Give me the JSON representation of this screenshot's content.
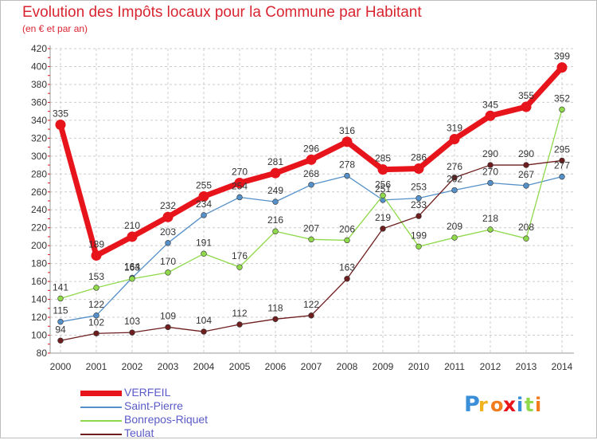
{
  "header": {
    "title": "Evolution des Impôts locaux pour la Commune par Habitant",
    "subtitle": "(en € et par an)"
  },
  "brand": {
    "logo_text": "Proxiti"
  },
  "colors": {
    "title": "#d92531",
    "legend_text": "#5a5ac8",
    "grid": "#cccccc",
    "axis_red_tick": "#e0161e"
  },
  "chart_data": {
    "type": "line",
    "title": "Evolution des Impôts locaux pour la Commune par Habitant",
    "subtitle": "(en € et par an)",
    "xlabel": "",
    "ylabel": "",
    "categories": [
      "2000",
      "2001",
      "2002",
      "2003",
      "2004",
      "2005",
      "2006",
      "2007",
      "2008",
      "2009",
      "2010",
      "2011",
      "2012",
      "2013",
      "2014"
    ],
    "ylim": [
      80,
      420
    ],
    "yticks": [
      80,
      100,
      120,
      140,
      160,
      180,
      200,
      220,
      240,
      260,
      280,
      300,
      320,
      340,
      360,
      380,
      400,
      420
    ],
    "grid": "horizontal",
    "legend_position": "bottom-left",
    "series": [
      {
        "name": "VERFEIL",
        "color": "#e8141c",
        "width": 7,
        "values": [
          335,
          189,
          210,
          232,
          255,
          270,
          281,
          296,
          316,
          285,
          286,
          319,
          345,
          355,
          399
        ]
      },
      {
        "name": "Saint-Pierre",
        "color": "#5590c9",
        "width": 1.3,
        "values": [
          115,
          122,
          164,
          203,
          234,
          254,
          249,
          268,
          278,
          251,
          253,
          262,
          270,
          267,
          277
        ]
      },
      {
        "name": "Bonrepos-Riquet",
        "color": "#8fd94a",
        "width": 1.3,
        "values": [
          141,
          153,
          163,
          170,
          191,
          176,
          216,
          207,
          206,
          256,
          199,
          209,
          218,
          208,
          352
        ]
      },
      {
        "name": "Teulat",
        "color": "#6e1e1e",
        "width": 1.3,
        "values": [
          94,
          102,
          103,
          109,
          104,
          112,
          118,
          122,
          163,
          219,
          233,
          276,
          290,
          290,
          295
        ]
      }
    ]
  }
}
